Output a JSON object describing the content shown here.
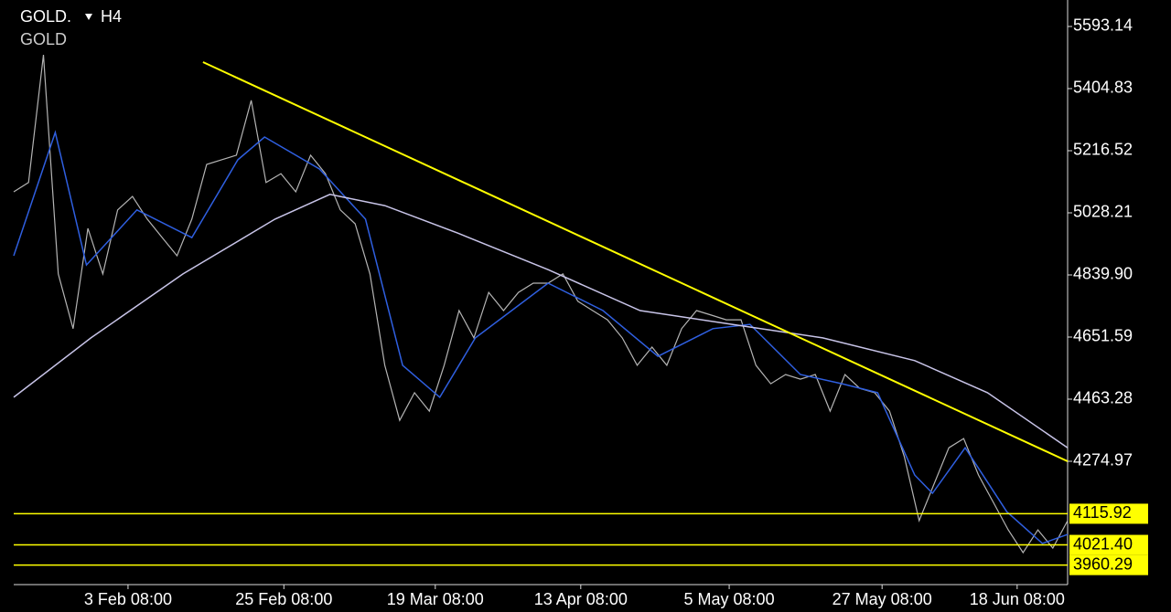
{
  "chart_data": {
    "type": "line",
    "symbol": "GOLD.",
    "timeframe": "H4",
    "description": "GOLD",
    "x": [
      0,
      1,
      2,
      3,
      4,
      5,
      6,
      7,
      8,
      9,
      10,
      11,
      12,
      13,
      14,
      15,
      16,
      17,
      18,
      19,
      20,
      21,
      22,
      23,
      24,
      25,
      26,
      27,
      28,
      29,
      30,
      31,
      32,
      33,
      34,
      35,
      36,
      37,
      38,
      39,
      40,
      41,
      42,
      43,
      44,
      45,
      46,
      47,
      48,
      49,
      50,
      51,
      52,
      53,
      54,
      55,
      56,
      57,
      58,
      59,
      60,
      61,
      62,
      63,
      64,
      65,
      66,
      67,
      68,
      69,
      70,
      71
    ],
    "xlim": [
      0,
      71
    ],
    "xticks": [
      {
        "value": 7.7,
        "label": "3 Feb 08:00"
      },
      {
        "value": 18.2,
        "label": "25 Feb 08:00"
      },
      {
        "value": 28.4,
        "label": "19 Mar 08:00"
      },
      {
        "value": 38.2,
        "label": "13 Apr 08:00"
      },
      {
        "value": 48.2,
        "label": "5 May 08:00"
      },
      {
        "value": 58.5,
        "label": "27 May 08:00"
      },
      {
        "value": 67.6,
        "label": "18 Jun 08:00"
      }
    ],
    "ylim": [
      3901.1,
      5673.4
    ],
    "yticks": [
      5593.14,
      5404.83,
      5216.52,
      5028.21,
      {
        "value": 4839.9,
        "label": "4839.90"
      },
      4651.59,
      4463.28,
      4274.97
    ],
    "series": [
      {
        "color": "#b4b4b4",
        "values": [
          5092,
          5120,
          5507,
          4843,
          4677,
          4981,
          4843,
          5037,
          5078,
          5009,
          4953,
          4898,
          5009,
          5175,
          5189,
          5203,
          5369,
          5120,
          5147,
          5092,
          5203,
          5147,
          5037,
          4995,
          4843,
          4566,
          4399,
          4483,
          4427,
          4566,
          4732,
          4649,
          4787,
          4732,
          4787,
          4815,
          4815,
          4843,
          4760,
          4732,
          4704,
          4649,
          4566,
          4621,
          4566,
          4677,
          4732,
          4718,
          4704,
          4704,
          4566,
          4510,
          4538,
          4524,
          4538,
          4427,
          4538,
          4496,
          4483,
          4427,
          4289,
          4095,
          4206,
          4316,
          4344,
          4233,
          4150,
          4067,
          3998,
          4067,
          4012,
          4095
        ]
      },
      {
        "color": "#2f5fe0",
        "x": [
          0,
          2.8,
          4.9,
          8.3,
          12,
          15.1,
          16.9,
          20.6,
          23.7,
          26.2,
          28.7,
          31.1,
          36,
          39.7,
          43.4,
          47.1,
          49.6,
          53,
          55.8,
          58.2,
          60.7,
          61.9,
          64.1,
          66.9,
          69.3,
          71
        ],
        "values": [
          4898,
          5272,
          4870,
          5037,
          4953,
          5189,
          5258,
          5161,
          5009,
          4566,
          4469,
          4649,
          4815,
          4732,
          4593,
          4677,
          4690,
          4538,
          4510,
          4483,
          4233,
          4178,
          4316,
          4122,
          4026,
          4053
        ]
      },
      {
        "color": "#c8c4e8",
        "x": [
          0,
          5.2,
          11.4,
          17.6,
          21.3,
          25,
          29.9,
          36,
          42.2,
          48.4,
          54.5,
          60.7,
          65.6,
          71
        ],
        "values": [
          4469,
          4649,
          4843,
          5009,
          5084,
          5050,
          4967,
          4856,
          4732,
          4690,
          4649,
          4580,
          4483,
          4316
        ]
      }
    ],
    "trendline": {
      "color": "#ffff00",
      "x": [
        12.75,
        71
      ],
      "values": [
        5485,
        4275
      ]
    },
    "levels": [
      4115.92,
      {
        "value": 4021.4,
        "label": "4021.40"
      },
      3960.29
    ],
    "level_color": "#ffff00"
  }
}
